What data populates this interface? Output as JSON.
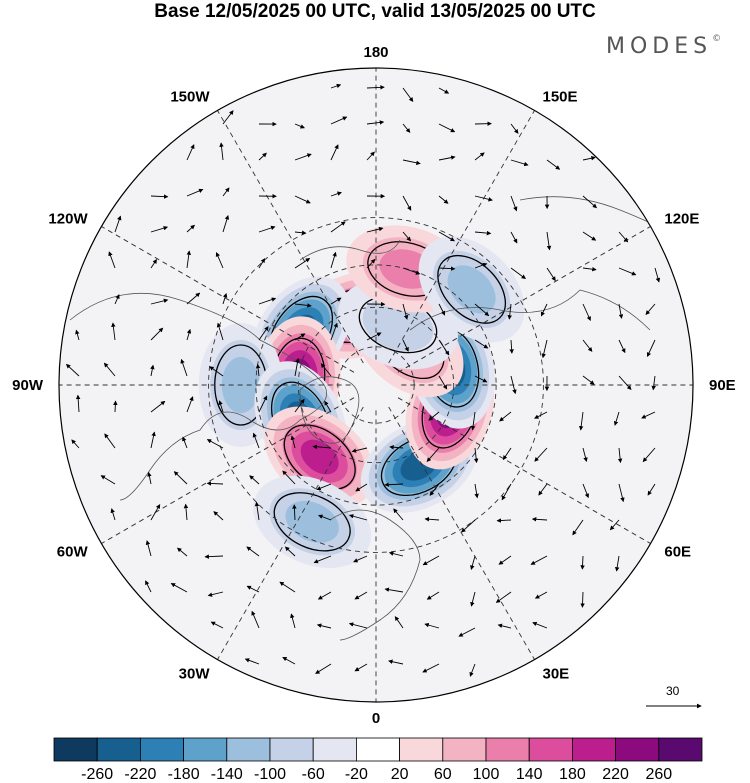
{
  "title": "Base 12/05/2025 00 UTC, valid 13/05/2025 00 UTC",
  "brand": {
    "name": "MODES",
    "mark": "©"
  },
  "longitude_labels": [
    "180",
    "150E",
    "120E",
    "90E",
    "60E",
    "30E",
    "0",
    "30W",
    "60W",
    "90W",
    "120W",
    "150W"
  ],
  "colorbar": {
    "levels": [
      "-260",
      "-220",
      "-180",
      "-140",
      "-100",
      "-60",
      "-20",
      "20",
      "60",
      "100",
      "140",
      "180",
      "220",
      "260"
    ],
    "colors": [
      "#0d3a5e",
      "#175f8f",
      "#2d80b6",
      "#5ea2cc",
      "#9bbfdc",
      "#c5d1e6",
      "#e4e6f1",
      "#ffffff",
      "#f9d8dc",
      "#f3b3c3",
      "#ea7fab",
      "#dc4d9d",
      "#bc1e8e",
      "#8c0a7e",
      "#5a0a6e"
    ]
  },
  "vector_reference": {
    "label": "30"
  },
  "map_data": {
    "projection": "north-polar-stereographic",
    "field": "anomaly",
    "anomalies": [
      {
        "name": "high-150w",
        "lon": -165,
        "lat": 62,
        "value": 180
      },
      {
        "name": "low-125w",
        "lon": -125,
        "lat": 55,
        "value": -240
      },
      {
        "name": "high-95w",
        "lon": -95,
        "lat": 60,
        "value": 220
      },
      {
        "name": "low-90w",
        "lon": -90,
        "lat": 40,
        "value": -100
      },
      {
        "name": "low-70w",
        "lon": -65,
        "lat": 58,
        "value": -240
      },
      {
        "name": "high-40w",
        "lon": -38,
        "lat": 55,
        "value": 190
      },
      {
        "name": "low-30w",
        "lon": -25,
        "lat": 35,
        "value": -100
      },
      {
        "name": "low-30e",
        "lon": 28,
        "lat": 55,
        "value": -240
      },
      {
        "name": "high-75e",
        "lon": 72,
        "lat": 60,
        "value": 220
      },
      {
        "name": "low-105e",
        "lon": 103,
        "lat": 60,
        "value": -240
      },
      {
        "name": "high-140e",
        "lon": 140,
        "lat": 70,
        "value": 100
      },
      {
        "name": "low-160e",
        "lon": 160,
        "lat": 65,
        "value": -60
      },
      {
        "name": "high-160e",
        "lon": 165,
        "lat": 45,
        "value": 100
      },
      {
        "name": "low-135e",
        "lon": 135,
        "lat": 40,
        "value": -100
      }
    ]
  }
}
